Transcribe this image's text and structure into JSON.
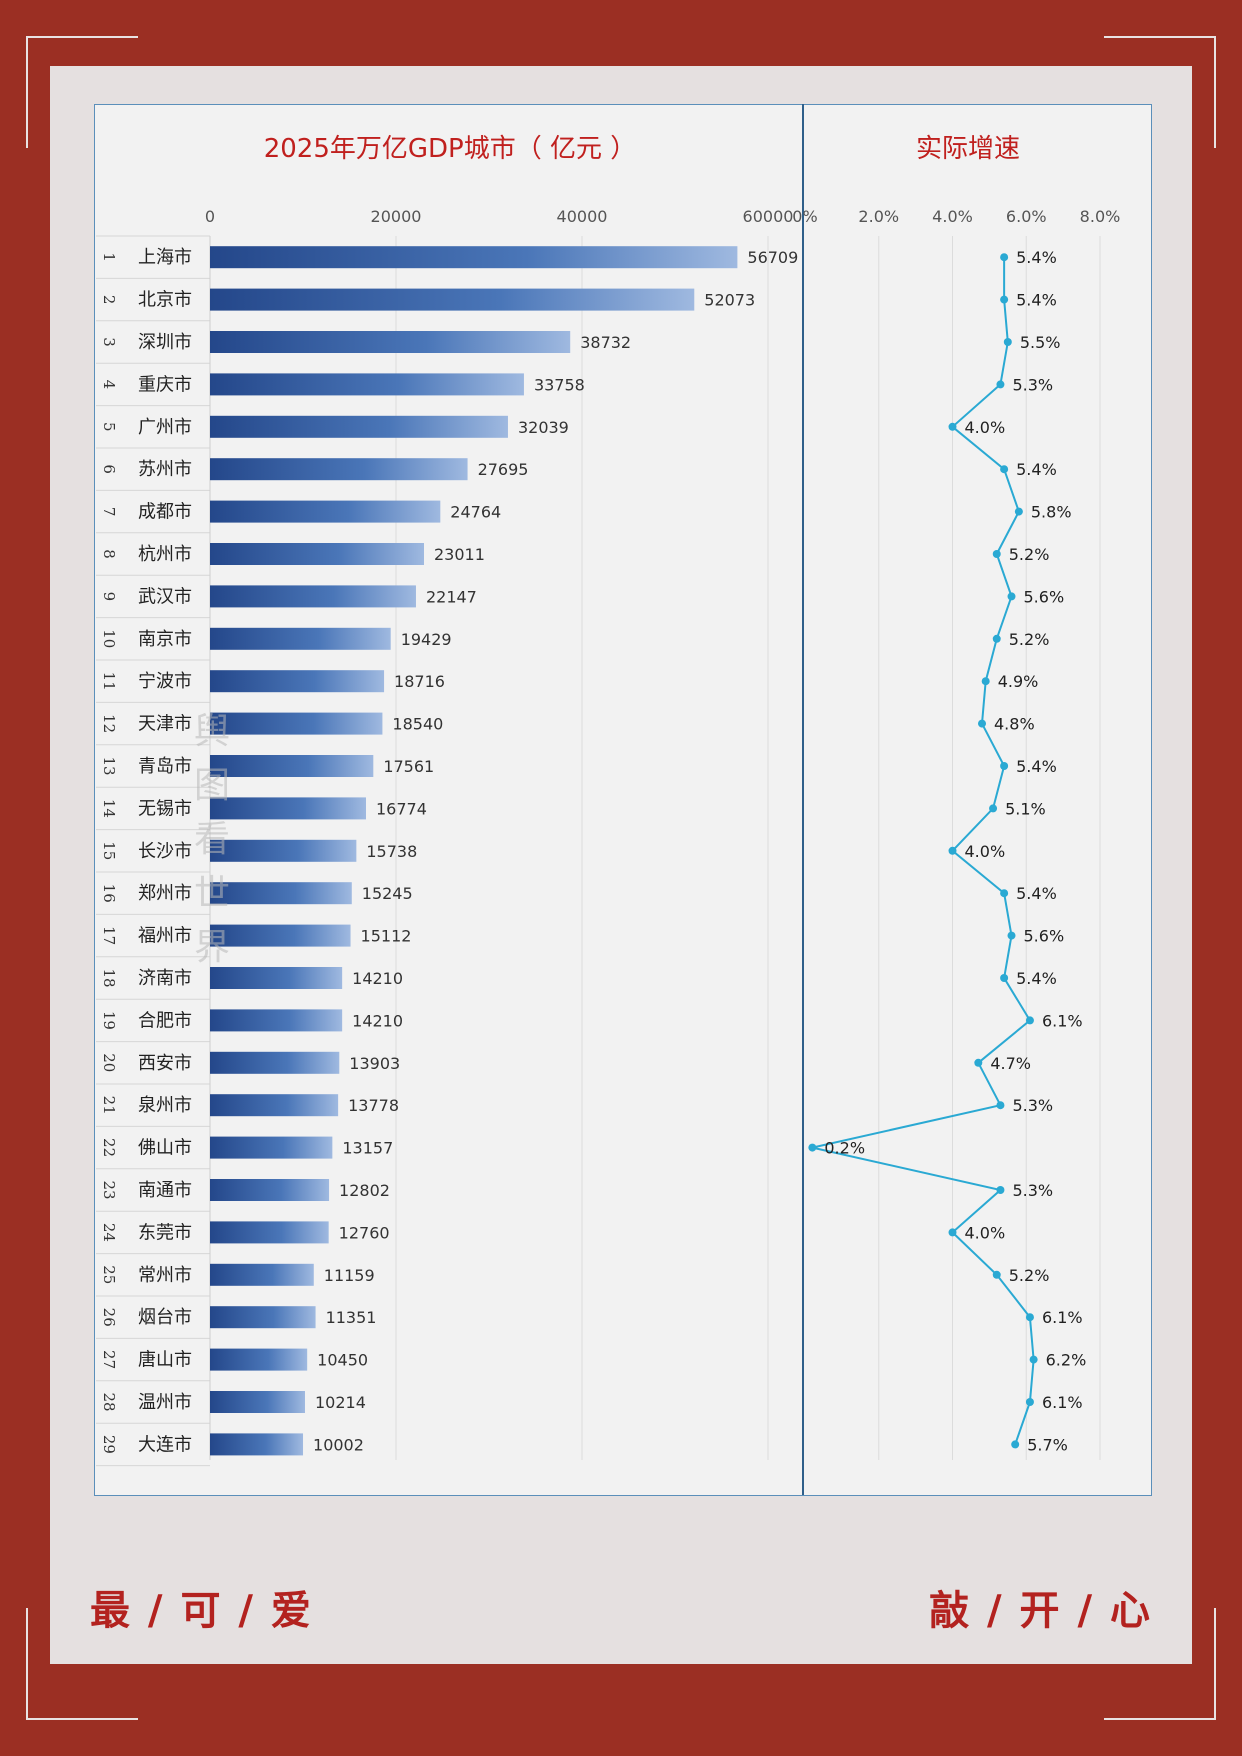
{
  "chart_data": {
    "type": "bar",
    "title_left": "2025年万亿GDP城市（ 亿元 ）",
    "title_right": "实际增速",
    "left_axis": {
      "ticks": [
        "0",
        "20000",
        "40000",
        "60000"
      ],
      "max": 60000
    },
    "right_axis": {
      "ticks": [
        "0%",
        "2.0%",
        "4.0%",
        "6.0%",
        "8.0%"
      ],
      "max": 8.0
    },
    "categories": [
      "上海市",
      "北京市",
      "深圳市",
      "重庆市",
      "广州市",
      "苏州市",
      "成都市",
      "杭州市",
      "武汉市",
      "南京市",
      "宁波市",
      "天津市",
      "青岛市",
      "无锡市",
      "长沙市",
      "郑州市",
      "福州市",
      "济南市",
      "合肥市",
      "西安市",
      "泉州市",
      "佛山市",
      "南通市",
      "东莞市",
      "常州市",
      "烟台市",
      "唐山市",
      "温州市",
      "大连市"
    ],
    "ranks": [
      "1",
      "2",
      "3",
      "4",
      "5",
      "6",
      "7",
      "8",
      "9",
      "10",
      "11",
      "12",
      "13",
      "14",
      "15",
      "16",
      "17",
      "18",
      "19",
      "20",
      "21",
      "22",
      "23",
      "24",
      "25",
      "26",
      "27",
      "28",
      "29"
    ],
    "gdp": [
      56709,
      52073,
      38732,
      33758,
      32039,
      27695,
      24764,
      23011,
      22147,
      19429,
      18716,
      18540,
      17561,
      16774,
      15738,
      15245,
      15112,
      14210,
      14210,
      13903,
      13778,
      13157,
      12802,
      12760,
      11159,
      11351,
      10450,
      10214,
      10002
    ],
    "growth": [
      5.4,
      5.4,
      5.5,
      5.3,
      4.0,
      5.4,
      5.8,
      5.2,
      5.6,
      5.2,
      4.9,
      4.8,
      5.4,
      5.1,
      4.0,
      5.4,
      5.6,
      5.4,
      6.1,
      4.7,
      5.3,
      0.2,
      5.3,
      4.0,
      5.2,
      6.1,
      6.2,
      6.1,
      5.7
    ],
    "growth_labels": [
      "5.4%",
      "5.4%",
      "5.5%",
      "5.3%",
      "4.0%",
      "5.4%",
      "5.8%",
      "5.2%",
      "5.6%",
      "5.2%",
      "4.9%",
      "4.8%",
      "5.4%",
      "5.1%",
      "4.0%",
      "5.4%",
      "5.6%",
      "5.4%",
      "6.1%",
      "4.7%",
      "5.3%",
      "0.2%",
      "5.3%",
      "4.0%",
      "5.2%",
      "6.1%",
      "6.2%",
      "6.1%",
      "5.7%"
    ],
    "colors": {
      "bar": "#3a64a8",
      "line": "#2aa9d3",
      "title": "#c0201e"
    }
  },
  "watermark": "舆图看世界",
  "footer": {
    "left": "最 / 可 / 爱",
    "right": "敲 / 开 / 心"
  }
}
